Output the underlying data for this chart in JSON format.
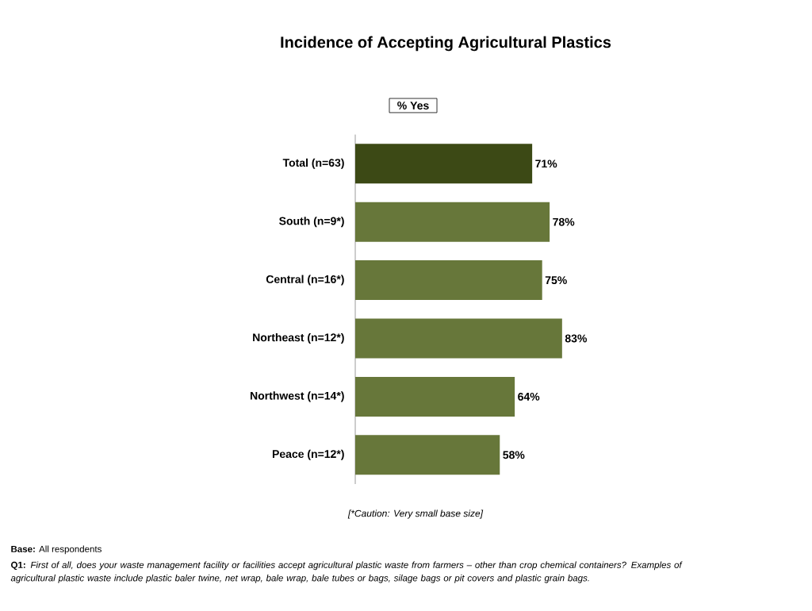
{
  "chart_data": {
    "type": "bar",
    "orientation": "horizontal",
    "title": "Incidence of Accepting Agricultural Plastics",
    "subtitle": "% Yes",
    "categories": [
      "Total (n=63)",
      "South (n=9*)",
      "Central (n=16*)",
      "Northeast (n=12*)",
      "Northwest (n=14*)",
      "Peace (n=12*)"
    ],
    "values": [
      71,
      78,
      75,
      83,
      64,
      58
    ],
    "value_labels": [
      "71%",
      "78%",
      "75%",
      "83%",
      "64%",
      "58%"
    ],
    "colors": [
      "#3c4915",
      "#67773a",
      "#67773a",
      "#67773a",
      "#67773a",
      "#67773a"
    ],
    "annotations": [
      "[*Caution: Very small base size]",
      "**Base:** All respondents",
      "**Q1:** *First of all, does your waste management facility or facilities accept agricultural plastic waste from farmers – other than crop chemical containers?  Examples of agricultural plastic waste include plastic baler twine, net wrap, bale wrap, bale tubes or bags, silage bags or pit covers and plastic grain bags.*"
    ]
  }
}
